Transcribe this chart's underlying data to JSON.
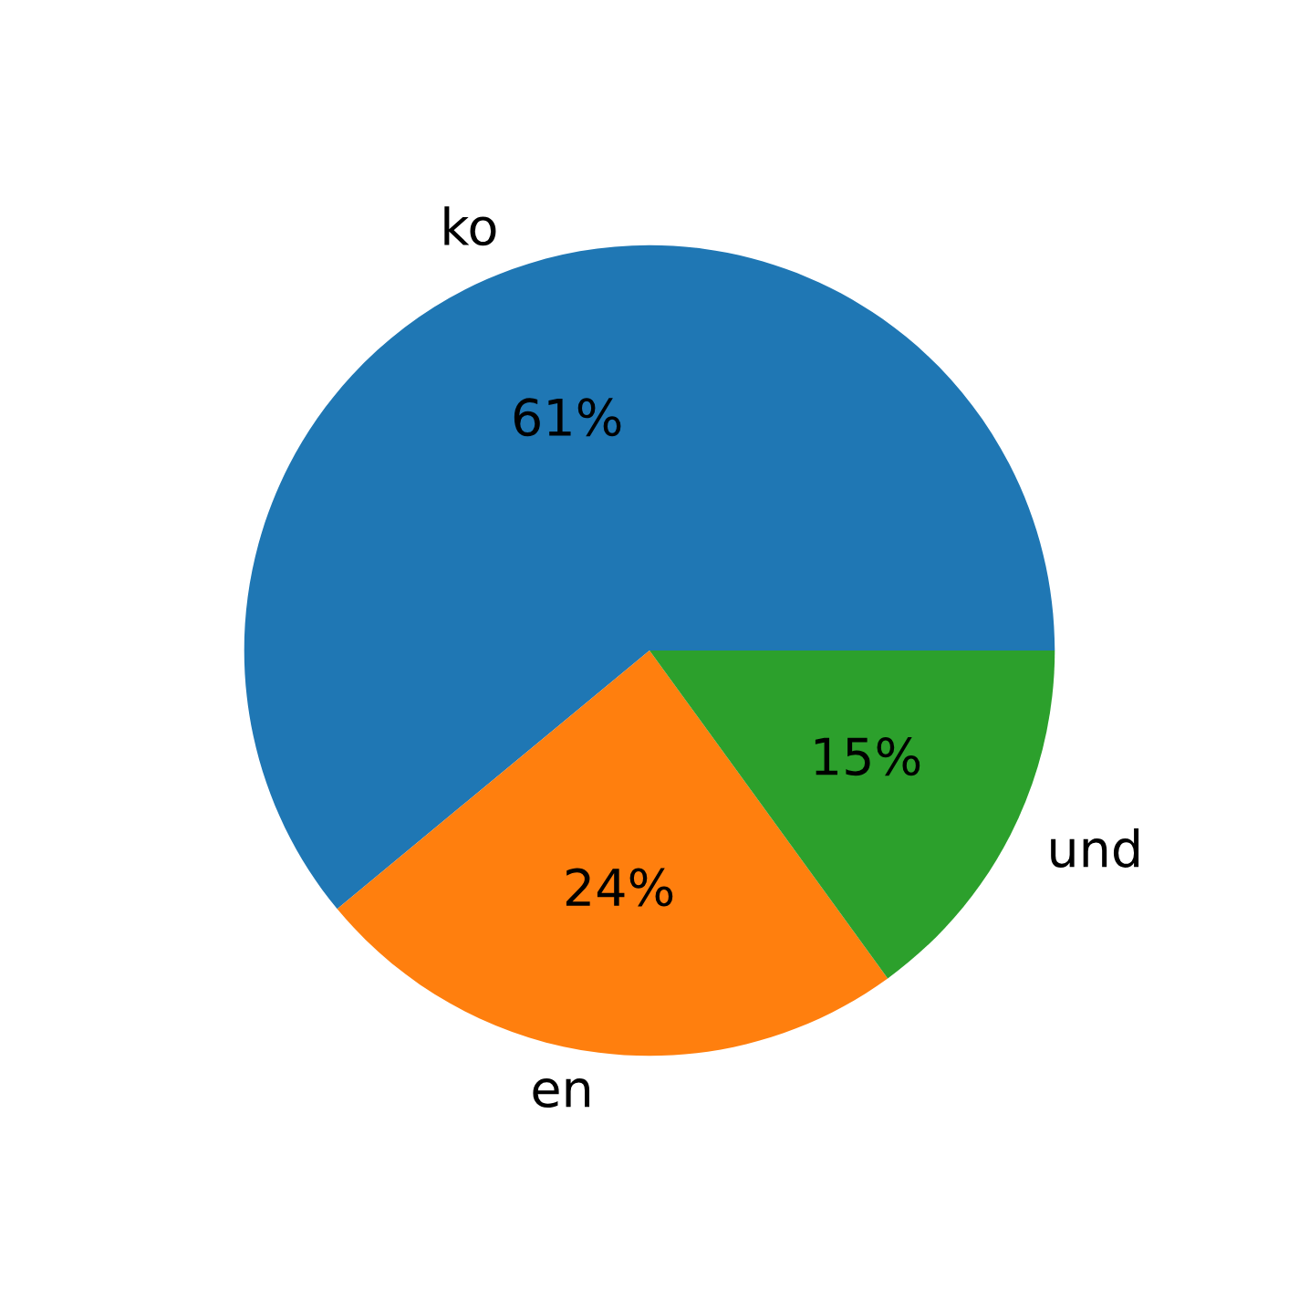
{
  "chart_data": {
    "type": "pie",
    "categories": [
      "ko",
      "en",
      "und"
    ],
    "values": [
      61,
      24,
      15
    ],
    "value_labels": [
      "61%",
      "24%",
      "15%"
    ],
    "colors": [
      "#1f77b4",
      "#ff7f0e",
      "#2ca02c"
    ],
    "legend": false
  }
}
